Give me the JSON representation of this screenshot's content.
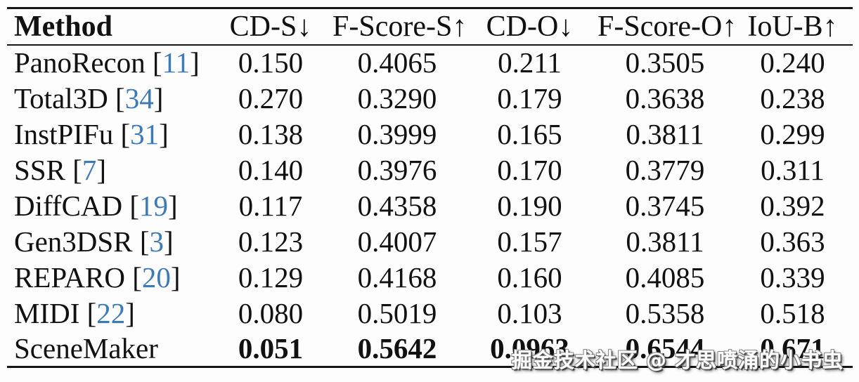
{
  "table": {
    "columns": [
      {
        "label": "Method",
        "align": "left",
        "bold": true
      },
      {
        "label": "CD-S↓"
      },
      {
        "label": "F-Score-S↑"
      },
      {
        "label": "CD-O↓"
      },
      {
        "label": "F-Score-O↑"
      },
      {
        "label": "IoU-B↑"
      }
    ],
    "rows": [
      {
        "method": "PanoRecon",
        "citation": "11",
        "values": [
          "0.150",
          "0.4065",
          "0.211",
          "0.3505",
          "0.240"
        ],
        "bold": false
      },
      {
        "method": "Total3D",
        "citation": "34",
        "values": [
          "0.270",
          "0.3290",
          "0.179",
          "0.3638",
          "0.238"
        ],
        "bold": false
      },
      {
        "method": "InstPIFu",
        "citation": "31",
        "values": [
          "0.138",
          "0.3999",
          "0.165",
          "0.3811",
          "0.299"
        ],
        "bold": false
      },
      {
        "method": "SSR",
        "citation": "7",
        "values": [
          "0.140",
          "0.3976",
          "0.170",
          "0.3779",
          "0.311"
        ],
        "bold": false
      },
      {
        "method": "DiffCAD",
        "citation": "19",
        "values": [
          "0.117",
          "0.4358",
          "0.190",
          "0.3745",
          "0.392"
        ],
        "bold": false
      },
      {
        "method": "Gen3DSR",
        "citation": "3",
        "values": [
          "0.123",
          "0.4007",
          "0.157",
          "0.3811",
          "0.363"
        ],
        "bold": false
      },
      {
        "method": "REPARO",
        "citation": "20",
        "values": [
          "0.129",
          "0.4168",
          "0.160",
          "0.4085",
          "0.339"
        ],
        "bold": false
      },
      {
        "method": "MIDI",
        "citation": "22",
        "values": [
          "0.080",
          "0.5019",
          "0.103",
          "0.5358",
          "0.518"
        ],
        "bold": false
      },
      {
        "method": "SceneMaker",
        "citation": null,
        "values": [
          "0.051",
          "0.5642",
          "0.0963",
          "0.6544",
          "0.671"
        ],
        "bold": true
      }
    ]
  },
  "watermark": {
    "text": "掘金技术社区 @ 才思喷涌的小书虫"
  },
  "colors": {
    "citation_blue": "#3d7ab8",
    "text": "#111111",
    "rule": "#151515",
    "background": "#fdfdfd",
    "watermark_fill": "#ffffff",
    "watermark_shadow": "#3f3f3f"
  }
}
